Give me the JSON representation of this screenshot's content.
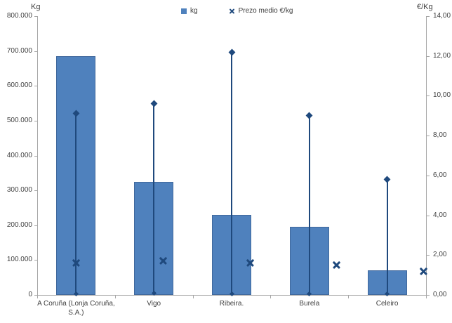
{
  "chart_data": {
    "type": "bar",
    "title": "",
    "categories": [
      "A Coruña (Lonja Coruña, S.A.)",
      "Vigo",
      "Ribeira.",
      "Burela",
      "Celeiro"
    ],
    "series": [
      {
        "name": "kg",
        "type": "bar",
        "axis": "left",
        "values": [
          685000,
          325000,
          230000,
          195000,
          70000
        ]
      },
      {
        "name": "Prezo medio €/kg",
        "type": "highlow-mean",
        "axis": "right",
        "mean": [
          1.6,
          1.7,
          1.6,
          1.5,
          1.2
        ],
        "max": [
          9.1,
          9.6,
          12.2,
          9.0,
          5.8
        ],
        "min": [
          0.05,
          0.1,
          0.05,
          0.05,
          0.05
        ]
      }
    ],
    "left_axis": {
      "title": "Kg",
      "min": 0,
      "max": 800000,
      "step": 100000,
      "tick_labels": [
        "800.000",
        "700.000",
        "600.000",
        "500.000",
        "400.000",
        "300.000",
        "200.000",
        "100.000",
        "0"
      ]
    },
    "right_axis": {
      "title": "€/Kg",
      "min": 0,
      "max": 14,
      "step": 2,
      "tick_labels": [
        "14,00",
        "12,00",
        "10,00",
        "8,00",
        "6,00",
        "4,00",
        "2,00",
        "0,00"
      ]
    },
    "legend": [
      {
        "label": "kg",
        "marker": "square"
      },
      {
        "label": "Prezo medio €/kg",
        "marker": "x"
      }
    ],
    "grid": "off",
    "legend_position": "top-center",
    "colors": {
      "bar_fill": "#4f81bd",
      "bar_border": "#40689c",
      "line": "#1f497d",
      "axis": "#a6a6a6",
      "text": "#3f3f3f"
    }
  }
}
